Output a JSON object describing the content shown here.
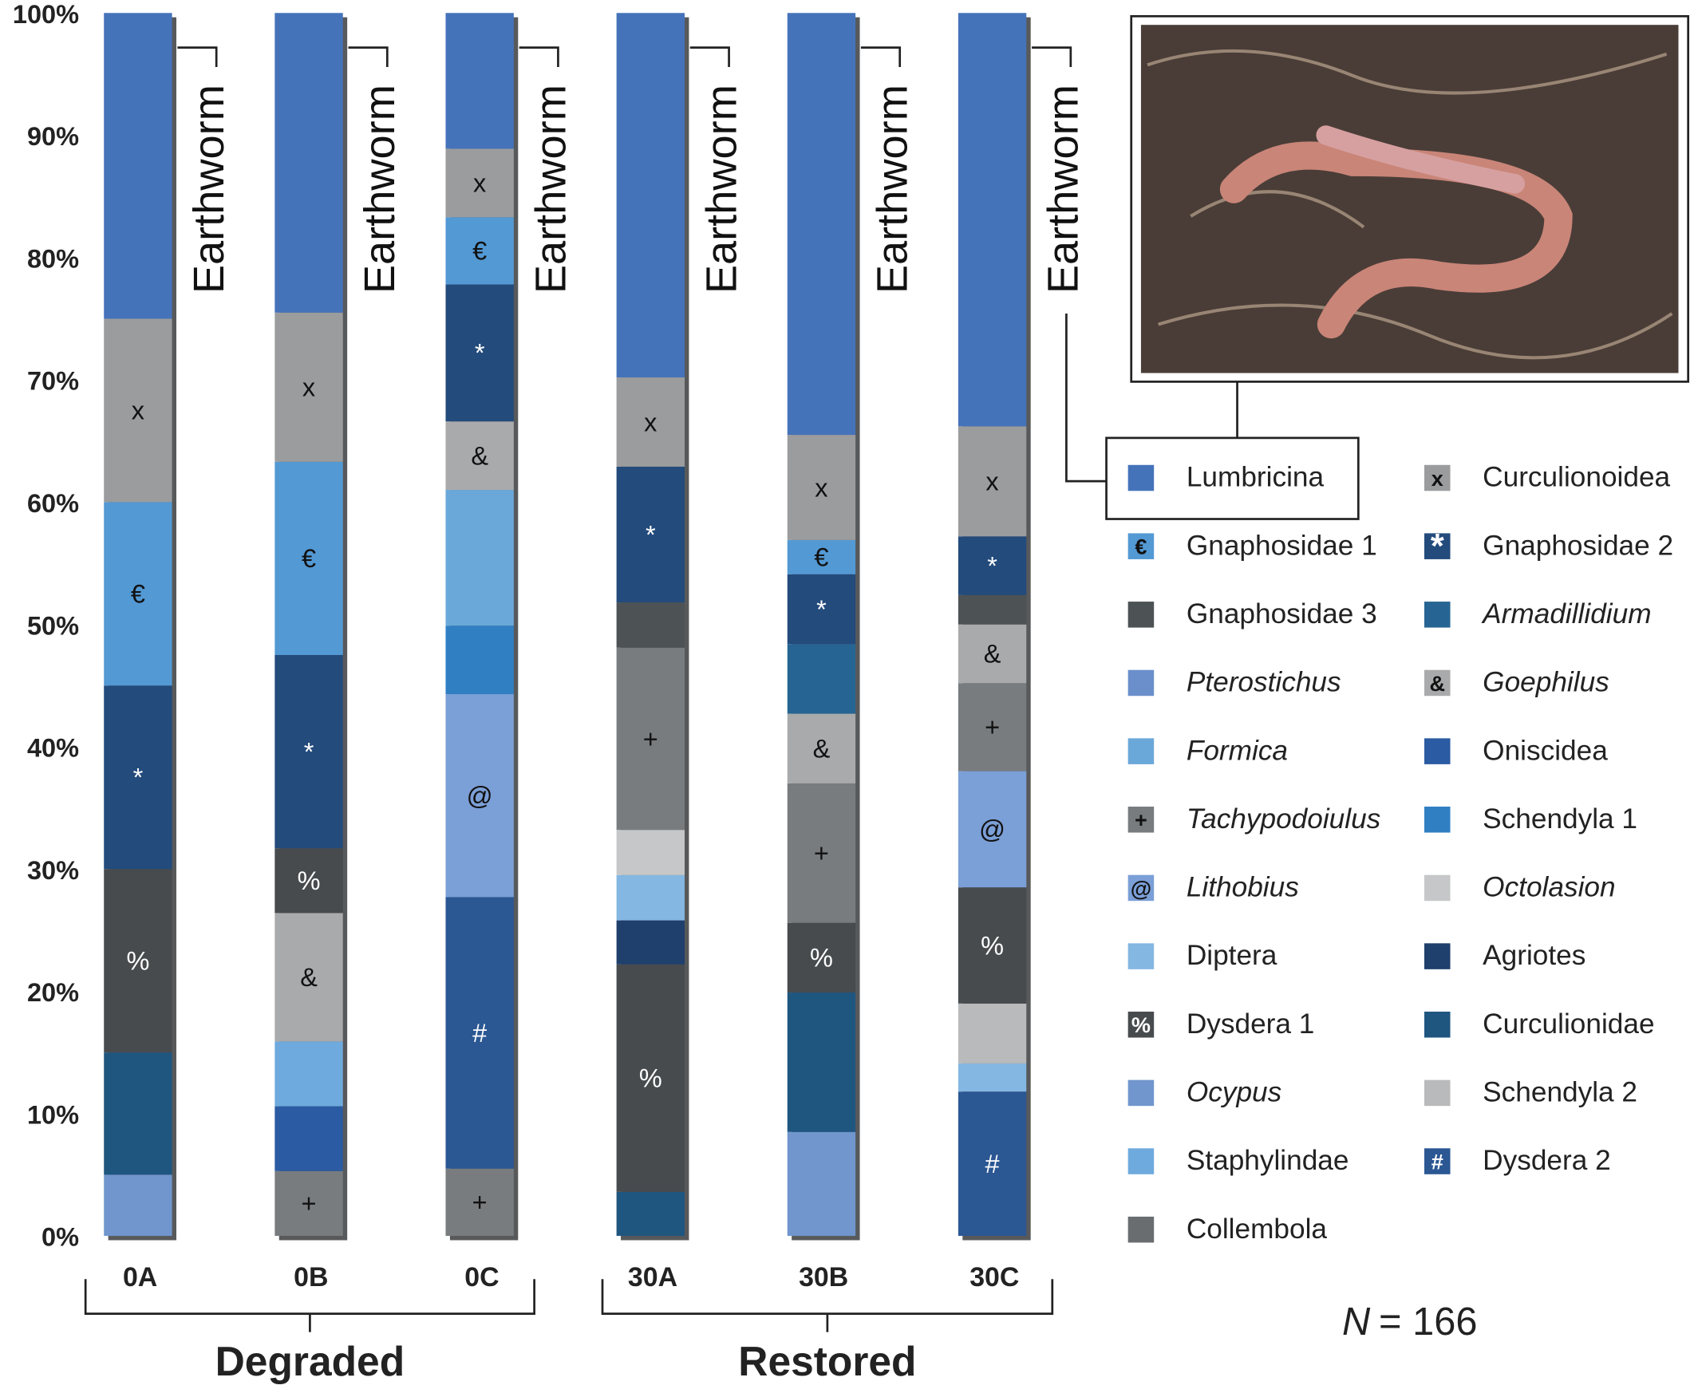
{
  "chart_data": {
    "type": "stacked_bar",
    "ylim": [
      0,
      100
    ],
    "yticks": [
      {
        "value": 0,
        "label": "0%"
      },
      {
        "value": 10,
        "label": "10%"
      },
      {
        "value": 20,
        "label": "20%"
      },
      {
        "value": 30,
        "label": "30%"
      },
      {
        "value": 40,
        "label": "40%"
      },
      {
        "value": 50,
        "label": "50%"
      },
      {
        "value": 60,
        "label": "60%"
      },
      {
        "value": 70,
        "label": "70%"
      },
      {
        "value": 80,
        "label": "80%"
      },
      {
        "value": 90,
        "label": "90%"
      },
      {
        "value": 100,
        "label": "100%"
      }
    ],
    "bracket_label": "Earthworm",
    "groups": [
      "Degraded",
      "Restored"
    ],
    "note": {
      "symbol": "N",
      "text": "= 166"
    },
    "legend": [
      {
        "name": "Lumbricina",
        "color": "#4573ba"
      },
      {
        "name": "Gnaphosidae 1",
        "color": "#5399d4",
        "symbol": "€",
        "symbol_color": "#111"
      },
      {
        "name": "Gnaphosidae 3",
        "color": "#4d5255"
      },
      {
        "name": "Pterostichus",
        "color": "#6a8fcb",
        "italic": true
      },
      {
        "name": "Formica",
        "color": "#6ba8da",
        "italic": true
      },
      {
        "name": "Tachypodoiulus",
        "color": "#787c7e",
        "italic": true,
        "symbol": "+",
        "symbol_color": "#111"
      },
      {
        "name": "Lithobius",
        "color": "#7b9fd7",
        "italic": true,
        "symbol": "@",
        "symbol_color": "#111"
      },
      {
        "name": "Diptera",
        "color": "#84b7e2"
      },
      {
        "name": "Dysdera 1",
        "color": "#474b4e",
        "symbol": "%",
        "symbol_color": "#fff"
      },
      {
        "name": "Ocypus",
        "color": "#7096cd",
        "italic": true
      },
      {
        "name": "Staphylindae",
        "color": "#6eaadd"
      },
      {
        "name": "Collembola",
        "color": "#696d70"
      },
      {
        "name": "Curculionoidea",
        "color": "#9b9c9e",
        "symbol": "x",
        "symbol_color": "#111"
      },
      {
        "name": "Gnaphosidae 2",
        "color": "#234b7c",
        "symbol": "*",
        "symbol_color": "#fff"
      },
      {
        "name": "Armadillidium",
        "color": "#266593",
        "italic": true
      },
      {
        "name": "Goephilus",
        "color": "#a9aaab",
        "italic": true,
        "symbol": "&",
        "symbol_color": "#111"
      },
      {
        "name": "Oniscidea",
        "color": "#2b5ba2"
      },
      {
        "name": "Schendyla 1",
        "color": "#307fc3"
      },
      {
        "name": "Octolasion",
        "color": "#c6c7c8",
        "italic": true
      },
      {
        "name": "Agriotes",
        "color": "#1f3f6c"
      },
      {
        "name": "Curculionidae",
        "color": "#1f5680"
      },
      {
        "name": "Schendyla 2",
        "color": "#b9babb"
      },
      {
        "name": "Dysdera 2",
        "color": "#2b5793",
        "symbol": "#",
        "symbol_color": "#fff"
      }
    ],
    "bars": [
      {
        "label": "0A",
        "segments": [
          {
            "taxon": "Ocypus",
            "value": 5
          },
          {
            "taxon": "Curculionidae",
            "value": 10
          },
          {
            "taxon": "Dysdera 1",
            "value": 15
          },
          {
            "taxon": "Gnaphosidae 2",
            "value": 15
          },
          {
            "taxon": "Gnaphosidae 1",
            "value": 15
          },
          {
            "taxon": "Curculionoidea",
            "value": 15
          },
          {
            "taxon": "Lumbricina",
            "value": 25
          }
        ]
      },
      {
        "label": "0B",
        "segments": [
          {
            "taxon": "Tachypodoiulus",
            "value": 5.3
          },
          {
            "taxon": "Oniscidea",
            "value": 5.3
          },
          {
            "taxon": "Staphylindae",
            "value": 5.3
          },
          {
            "taxon": "Goephilus",
            "value": 10.5
          },
          {
            "taxon": "Dysdera 1",
            "value": 5.3
          },
          {
            "taxon": "Gnaphosidae 2",
            "value": 15.8
          },
          {
            "taxon": "Gnaphosidae 1",
            "value": 15.8
          },
          {
            "taxon": "Curculionoidea",
            "value": 12.2
          },
          {
            "taxon": "Lumbricina",
            "value": 24.5
          }
        ]
      },
      {
        "label": "0C",
        "segments": [
          {
            "taxon": "Tachypodoiulus",
            "value": 5.5
          },
          {
            "taxon": "Dysdera 2",
            "value": 22.2
          },
          {
            "taxon": "Lithobius",
            "value": 16.6
          },
          {
            "taxon": "Schendyla 1",
            "value": 5.6
          },
          {
            "taxon": "Formica",
            "value": 11.1
          },
          {
            "taxon": "Goephilus",
            "value": 5.6
          },
          {
            "taxon": "Gnaphosidae 2",
            "value": 11.2
          },
          {
            "taxon": "Gnaphosidae 1",
            "value": 5.5
          },
          {
            "taxon": "Curculionoidea",
            "value": 5.6
          },
          {
            "taxon": "Lumbricina",
            "value": 11.1
          }
        ]
      },
      {
        "label": "30A",
        "segments": [
          {
            "taxon": "Curculionidae",
            "value": 3.6
          },
          {
            "taxon": "Dysdera 1",
            "value": 18.6
          },
          {
            "taxon": "Agriotes",
            "value": 3.6
          },
          {
            "taxon": "Diptera",
            "value": 3.7
          },
          {
            "taxon": "Octolasion",
            "value": 3.7
          },
          {
            "taxon": "Tachypodoiulus",
            "value": 14.9
          },
          {
            "taxon": "Gnaphosidae 3",
            "value": 3.7
          },
          {
            "taxon": "Gnaphosidae 2",
            "value": 11.1
          },
          {
            "taxon": "Curculionoidea",
            "value": 7.3
          },
          {
            "taxon": "Lumbricina",
            "value": 29.8
          }
        ]
      },
      {
        "label": "30B",
        "segments": [
          {
            "taxon": "Ocypus",
            "value": 8.5
          },
          {
            "taxon": "Curculionidae",
            "value": 11.4
          },
          {
            "taxon": "Dysdera 1",
            "value": 5.7
          },
          {
            "taxon": "Tachypodoiulus",
            "value": 11.4
          },
          {
            "taxon": "Goephilus",
            "value": 5.7
          },
          {
            "taxon": "Armadillidium",
            "value": 5.7
          },
          {
            "taxon": "Gnaphosidae 2",
            "value": 5.7
          },
          {
            "taxon": "Gnaphosidae 1",
            "value": 2.8
          },
          {
            "taxon": "Curculionoidea",
            "value": 8.6
          },
          {
            "taxon": "Lumbricina",
            "value": 34.5
          }
        ]
      },
      {
        "label": "30C",
        "segments": [
          {
            "taxon": "Dysdera 2",
            "value": 11.8
          },
          {
            "taxon": "Diptera",
            "value": 2.3
          },
          {
            "taxon": "Schendyla 2",
            "value": 4.9
          },
          {
            "taxon": "Dysdera 1",
            "value": 9.5
          },
          {
            "taxon": "Lithobius",
            "value": 9.5
          },
          {
            "taxon": "Tachypodoiulus",
            "value": 7.2
          },
          {
            "taxon": "Goephilus",
            "value": 4.8
          },
          {
            "taxon": "Gnaphosidae 3",
            "value": 2.4
          },
          {
            "taxon": "Gnaphosidae 2",
            "value": 4.8
          },
          {
            "taxon": "Curculionoidea",
            "value": 9.0
          },
          {
            "taxon": "Lumbricina",
            "value": 33.8
          }
        ]
      }
    ]
  }
}
